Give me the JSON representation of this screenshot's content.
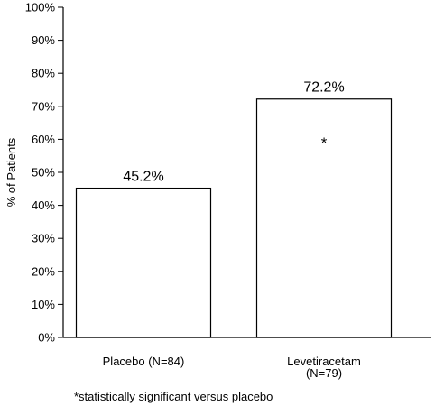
{
  "chart_data": {
    "type": "bar",
    "ylabel": "% of Patients",
    "xlabel": "",
    "ylim": [
      0,
      100
    ],
    "yticks": [
      0,
      10,
      20,
      30,
      40,
      50,
      60,
      70,
      80,
      90,
      100
    ],
    "ytick_labels": [
      "0%",
      "10%",
      "20%",
      "30%",
      "40%",
      "50%",
      "60%",
      "70%",
      "80%",
      "90%",
      "100%"
    ],
    "grid": false,
    "categories": [
      {
        "lines": [
          "Placebo (N=84)"
        ]
      },
      {
        "lines": [
          "Levetiracetam",
          "(N=79)"
        ]
      }
    ],
    "values": [
      45.2,
      72.2
    ],
    "data_labels": [
      "45.2%",
      "72.2%"
    ],
    "annotations": [
      {
        "category_index": 1,
        "text": "*",
        "at_value": 59
      }
    ],
    "bar_color": "#ffffff",
    "edge_color": "#000000"
  },
  "footnote": "*statistically significant versus placebo"
}
